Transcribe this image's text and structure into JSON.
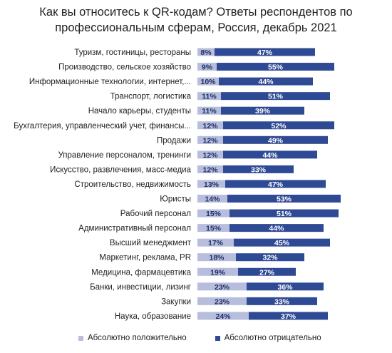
{
  "chart_data": {
    "type": "bar",
    "orientation": "horizontal",
    "stacked": true,
    "title": "Как вы относитесь к QR-кодам? Ответы респондентов по профессиональным сферам, Россия, декабрь 2021",
    "categories": [
      "Туризм, гостиницы, рестораны",
      "Производство, сельское хозяйство",
      "Информационные технологии, интернет,...",
      "Транспорт, логистика",
      "Начало карьеры, студенты",
      "Бухгалтерия, управленческий учет, финансы...",
      "Продажи",
      "Управление персоналом, тренинги",
      "Искусство, развлечения, масс-медиа",
      "Строительство, недвижимость",
      "Юристы",
      "Рабочий персонал",
      "Административный персонал",
      "Высший менеджмент",
      "Маркетинг, реклама, PR",
      "Медицина, фармацевтика",
      "Банки, инвестиции, лизинг",
      "Закупки",
      "Наука, образование"
    ],
    "series": [
      {
        "name": "Абсолютно положительно",
        "color": "#b7bedd",
        "values": [
          8,
          9,
          10,
          11,
          11,
          12,
          12,
          12,
          12,
          13,
          14,
          15,
          15,
          17,
          18,
          19,
          23,
          23,
          24
        ]
      },
      {
        "name": "Абсолютно отрицательно",
        "color": "#2f4a94",
        "values": [
          47,
          55,
          44,
          51,
          39,
          52,
          49,
          44,
          33,
          47,
          53,
          51,
          44,
          45,
          32,
          27,
          36,
          33,
          37
        ]
      }
    ],
    "value_suffix": "%",
    "legend_position": "bottom"
  }
}
